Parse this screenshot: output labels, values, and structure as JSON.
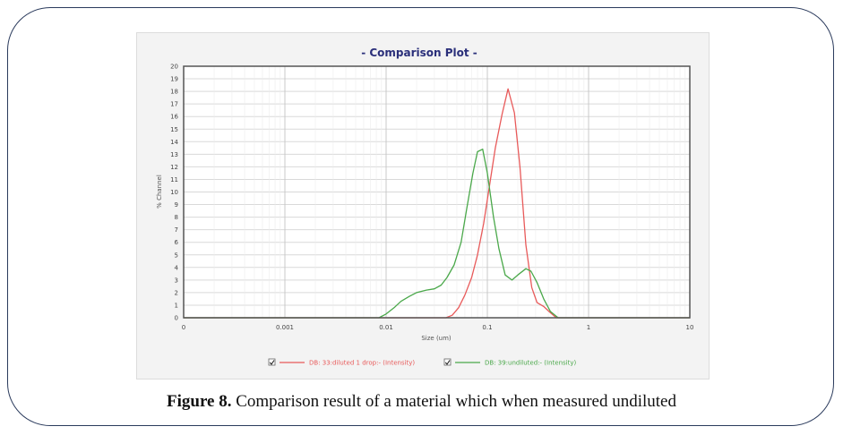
{
  "figure": {
    "label": "Figure 8.",
    "caption": "Comparison result of a material which when measured undiluted"
  },
  "colors": {
    "red_series": "#e85a5a",
    "green_series": "#4aa84a",
    "title": "#2a2f7a",
    "grid": "#d9d9d9",
    "plot_bg": "#ffffff"
  },
  "chart_data": {
    "type": "line",
    "title": "- Comparison Plot -",
    "xlabel": "Size (um)",
    "ylabel": "% Channel",
    "x_scale": "log",
    "xlim": [
      0.0001,
      10
    ],
    "ylim": [
      0,
      20
    ],
    "x_ticks": [
      {
        "value": 0.0001,
        "label": "0"
      },
      {
        "value": 0.001,
        "label": "0.001"
      },
      {
        "value": 0.01,
        "label": "0.01"
      },
      {
        "value": 0.1,
        "label": "0.1"
      },
      {
        "value": 1,
        "label": "1"
      },
      {
        "value": 10,
        "label": "10"
      }
    ],
    "y_ticks": [
      0,
      1,
      2,
      3,
      4,
      5,
      6,
      7,
      8,
      9,
      10,
      11,
      12,
      13,
      14,
      15,
      16,
      17,
      18,
      19,
      20
    ],
    "grid": true,
    "legend_position": "bottom",
    "series": [
      {
        "name": "DB: 33:diluted 1 drop:- (Intensity)",
        "color": "#e85a5a",
        "checked": true,
        "points": [
          [
            0.0001,
            0
          ],
          [
            0.039,
            0
          ],
          [
            0.045,
            0.2
          ],
          [
            0.052,
            0.8
          ],
          [
            0.06,
            1.8
          ],
          [
            0.07,
            3.2
          ],
          [
            0.08,
            5.0
          ],
          [
            0.092,
            7.5
          ],
          [
            0.105,
            10.5
          ],
          [
            0.12,
            13.5
          ],
          [
            0.14,
            16.2
          ],
          [
            0.16,
            18.2
          ],
          [
            0.185,
            16.3
          ],
          [
            0.21,
            12.0
          ],
          [
            0.24,
            5.8
          ],
          [
            0.275,
            2.4
          ],
          [
            0.31,
            1.2
          ],
          [
            0.36,
            0.9
          ],
          [
            0.42,
            0.4
          ],
          [
            0.48,
            0
          ],
          [
            10,
            0
          ]
        ]
      },
      {
        "name": "DB: 39:undiluted:- (Intensity)",
        "color": "#4aa84a",
        "checked": true,
        "points": [
          [
            0.0001,
            0
          ],
          [
            0.0085,
            0
          ],
          [
            0.01,
            0.3
          ],
          [
            0.012,
            0.8
          ],
          [
            0.014,
            1.3
          ],
          [
            0.017,
            1.7
          ],
          [
            0.02,
            2.0
          ],
          [
            0.025,
            2.2
          ],
          [
            0.03,
            2.3
          ],
          [
            0.035,
            2.6
          ],
          [
            0.04,
            3.2
          ],
          [
            0.047,
            4.2
          ],
          [
            0.055,
            6.0
          ],
          [
            0.063,
            8.8
          ],
          [
            0.072,
            11.5
          ],
          [
            0.08,
            13.2
          ],
          [
            0.09,
            13.4
          ],
          [
            0.1,
            11.5
          ],
          [
            0.115,
            8.0
          ],
          [
            0.13,
            5.5
          ],
          [
            0.15,
            3.4
          ],
          [
            0.175,
            3.0
          ],
          [
            0.2,
            3.4
          ],
          [
            0.24,
            3.9
          ],
          [
            0.27,
            3.7
          ],
          [
            0.31,
            2.8
          ],
          [
            0.36,
            1.5
          ],
          [
            0.42,
            0.5
          ],
          [
            0.5,
            0
          ],
          [
            10,
            0
          ]
        ]
      }
    ]
  }
}
